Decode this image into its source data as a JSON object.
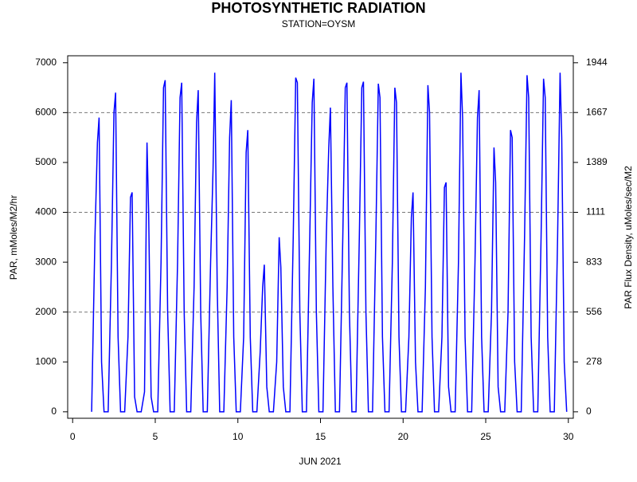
{
  "chart_data": {
    "type": "line",
    "title": "PHOTOSYNTHETIC RADIATION",
    "subtitle": "STATION=OYSM",
    "x_label": "JUN 2021",
    "y_label": "PAR, mMoles/M2/hr",
    "y2_label": "PAR Flux Density, uMoles/sec/M2",
    "xlim": [
      -0.3,
      30.3
    ],
    "xticks": [
      0,
      5,
      10,
      15,
      20,
      25,
      30
    ],
    "ylim": [
      -130,
      7140
    ],
    "yticks": [
      0,
      1000,
      2000,
      3000,
      4000,
      5000,
      6000,
      7000
    ],
    "y2lim": [
      -36,
      1983
    ],
    "y2ticks": [
      0,
      278,
      556,
      833,
      1111,
      1389,
      1667,
      1944
    ],
    "ygrid": [
      2000,
      4000,
      6000
    ],
    "x": [
      1.15,
      1.35,
      1.5,
      1.6,
      1.75,
      1.9,
      2.15,
      2.35,
      2.5,
      2.6,
      2.75,
      2.9,
      3.15,
      3.35,
      3.5,
      3.6,
      3.75,
      3.9,
      4.15,
      4.35,
      4.5,
      4.6,
      4.75,
      4.9,
      5.15,
      5.35,
      5.5,
      5.6,
      5.75,
      5.9,
      6.15,
      6.35,
      6.5,
      6.6,
      6.75,
      6.9,
      7.15,
      7.35,
      7.5,
      7.6,
      7.75,
      7.9,
      8.15,
      8.35,
      8.5,
      8.6,
      8.75,
      8.9,
      9.15,
      9.35,
      9.5,
      9.6,
      9.75,
      9.9,
      10.15,
      10.35,
      10.5,
      10.6,
      10.75,
      10.9,
      11.15,
      11.35,
      11.5,
      11.6,
      11.75,
      11.9,
      12.15,
      12.35,
      12.5,
      12.6,
      12.75,
      12.9,
      13.15,
      13.35,
      13.5,
      13.6,
      13.75,
      13.9,
      14.15,
      14.35,
      14.5,
      14.6,
      14.75,
      14.9,
      15.15,
      15.35,
      15.5,
      15.6,
      15.75,
      15.9,
      16.15,
      16.35,
      16.5,
      16.6,
      16.75,
      16.9,
      17.15,
      17.35,
      17.5,
      17.6,
      17.75,
      17.9,
      18.15,
      18.35,
      18.5,
      18.6,
      18.75,
      18.9,
      19.15,
      19.35,
      19.5,
      19.6,
      19.75,
      19.9,
      20.15,
      20.35,
      20.5,
      20.6,
      20.75,
      20.9,
      21.15,
      21.35,
      21.5,
      21.6,
      21.75,
      21.9,
      22.15,
      22.35,
      22.5,
      22.6,
      22.75,
      22.9,
      23.15,
      23.35,
      23.5,
      23.6,
      23.75,
      23.9,
      24.15,
      24.35,
      24.5,
      24.6,
      24.75,
      24.9,
      25.15,
      25.35,
      25.5,
      25.6,
      25.75,
      25.9,
      26.15,
      26.35,
      26.5,
      26.6,
      26.75,
      26.9,
      27.15,
      27.35,
      27.5,
      27.6,
      27.75,
      27.9,
      28.15,
      28.35,
      28.5,
      28.6,
      28.75,
      28.9,
      29.15,
      29.35,
      29.5,
      29.6,
      29.75,
      29.9
    ],
    "series": [
      {
        "color": "#0000ff",
        "values": [
          0,
          3500,
          5400,
          5900,
          1000,
          0,
          0,
          3000,
          6000,
          6400,
          1500,
          0,
          0,
          1500,
          4300,
          4400,
          300,
          0,
          0,
          400,
          5400,
          4000,
          300,
          0,
          0,
          3000,
          6500,
          6650,
          2000,
          0,
          0,
          3000,
          6300,
          6600,
          2000,
          0,
          0,
          2500,
          5800,
          6450,
          2000,
          0,
          0,
          3000,
          4900,
          6800,
          2500,
          0,
          0,
          2500,
          5500,
          6250,
          1500,
          0,
          0,
          1500,
          5200,
          5650,
          1500,
          0,
          0,
          1200,
          2500,
          2950,
          500,
          0,
          0,
          1000,
          3500,
          2900,
          500,
          0,
          0,
          3500,
          6700,
          6600,
          2000,
          0,
          0,
          3500,
          6200,
          6680,
          2000,
          0,
          0,
          3500,
          5300,
          6100,
          2500,
          0,
          0,
          3500,
          6500,
          6600,
          2000,
          0,
          0,
          3500,
          6500,
          6620,
          2000,
          0,
          0,
          3500,
          6580,
          6300,
          1500,
          0,
          0,
          3000,
          6500,
          6200,
          1500,
          0,
          0,
          1500,
          3900,
          4400,
          1000,
          0,
          0,
          2500,
          6550,
          6000,
          1500,
          0,
          0,
          1500,
          4500,
          4600,
          500,
          0,
          0,
          3000,
          6800,
          5900,
          1500,
          0,
          0,
          3000,
          5900,
          6450,
          1500,
          0,
          0,
          2000,
          5300,
          4600,
          500,
          0,
          0,
          2000,
          5650,
          5500,
          1000,
          0,
          0,
          3500,
          6750,
          6300,
          1500,
          0,
          0,
          3500,
          6680,
          6300,
          1500,
          0,
          0,
          3500,
          6800,
          5500,
          1000,
          0
        ]
      }
    ]
  }
}
